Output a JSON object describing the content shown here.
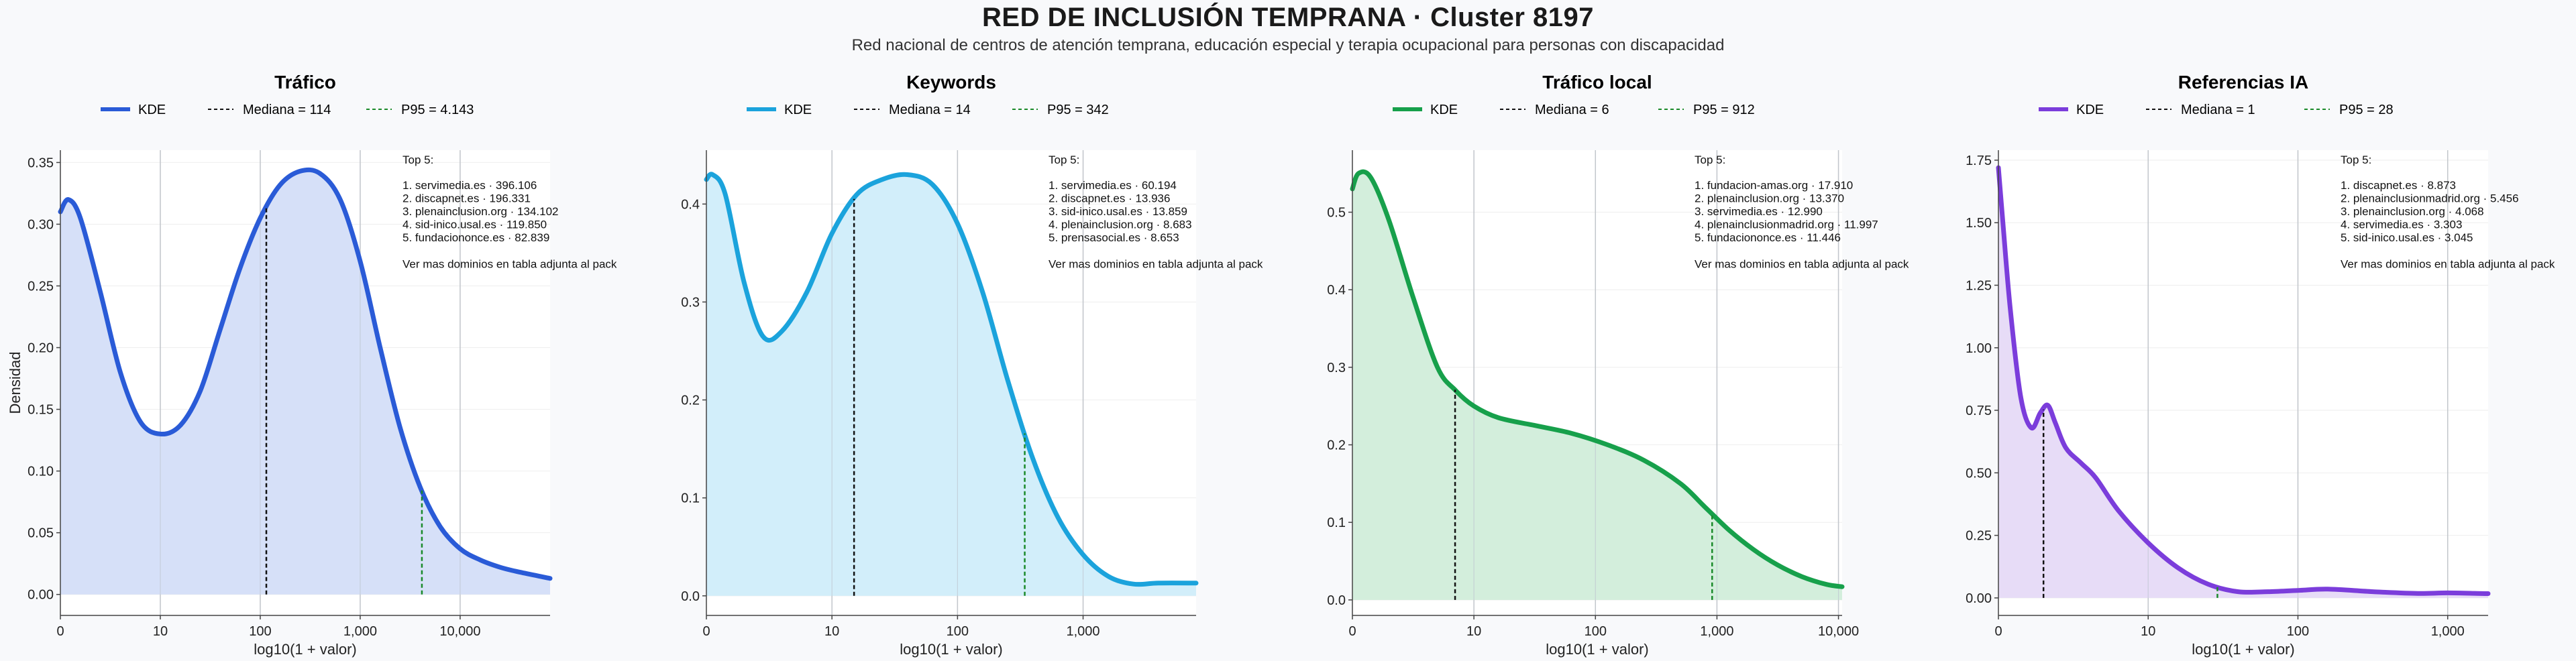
{
  "title": "RED DE INCLUSIÓN TEMPRANA · Cluster 8197",
  "subtitle": "Red nacional de centros de atención temprana, educación especial y terapia ocupacional para personas con discapacidad",
  "chart_data": [
    {
      "type": "area",
      "title": "Tráfico",
      "color": "#2a5bd7",
      "fill": "#d6e0f8",
      "xlabel": "log10(1 + valor)",
      "ylabel": "Densidad",
      "x_scale": "log10(1+x)",
      "xlim_log": [
        0,
        4.9
      ],
      "xticks": [
        {
          "v": 0,
          "label": "0"
        },
        {
          "v": 1,
          "label": "10"
        },
        {
          "v": 2,
          "label": "100"
        },
        {
          "v": 3,
          "label": "1,000"
        },
        {
          "v": 4,
          "label": "10,000"
        }
      ],
      "ylim": [
        -0.017,
        0.36
      ],
      "yticks": [
        0,
        0.05,
        0.1,
        0.15,
        0.2,
        0.25,
        0.3,
        0.35
      ],
      "ytick_labels": [
        "0.00",
        "0.05",
        "0.10",
        "0.15",
        "0.20",
        "0.25",
        "0.30",
        "0.35"
      ],
      "series": [
        {
          "name": "KDE",
          "x": [
            0,
            0.08,
            0.2,
            0.4,
            0.6,
            0.8,
            1.0,
            1.2,
            1.4,
            1.6,
            1.8,
            2.0,
            2.2,
            2.4,
            2.6,
            2.8,
            3.0,
            3.2,
            3.4,
            3.6,
            3.8,
            4.0,
            4.2,
            4.4,
            4.6,
            4.9
          ],
          "y": [
            0.31,
            0.32,
            0.305,
            0.245,
            0.18,
            0.14,
            0.13,
            0.137,
            0.165,
            0.215,
            0.265,
            0.305,
            0.332,
            0.343,
            0.341,
            0.32,
            0.27,
            0.2,
            0.135,
            0.087,
            0.055,
            0.037,
            0.028,
            0.022,
            0.018,
            0.013
          ]
        }
      ],
      "median": {
        "label": "Mediana = 114",
        "x": 114
      },
      "p95": {
        "label": "P95 = 4.143",
        "x": 4143
      },
      "top5_header": "Top 5:",
      "top5": [
        "1. servimedia.es · 396.106",
        "2. discapnet.es · 196.331",
        "3. plenainclusion.org · 134.102",
        "4. sid-inico.usal.es · 119.850",
        "5. fundaciononce.es · 82.839"
      ],
      "note": "Ver mas dominios en tabla adjunta al pack"
    },
    {
      "type": "area",
      "title": "Keywords",
      "color": "#1ba3dc",
      "fill": "#d2eefa",
      "xlabel": "log10(1 + valor)",
      "ylabel": "",
      "x_scale": "log10(1+x)",
      "xlim_log": [
        0,
        3.9
      ],
      "xticks": [
        {
          "v": 0,
          "label": "0"
        },
        {
          "v": 1,
          "label": "10"
        },
        {
          "v": 2,
          "label": "100"
        },
        {
          "v": 3,
          "label": "1,000"
        }
      ],
      "ylim": [
        -0.02,
        0.455
      ],
      "yticks": [
        0,
        0.1,
        0.2,
        0.3,
        0.4
      ],
      "ytick_labels": [
        "0.0",
        "0.1",
        "0.2",
        "0.3",
        "0.4"
      ],
      "series": [
        {
          "name": "KDE",
          "x": [
            0,
            0.05,
            0.15,
            0.3,
            0.45,
            0.6,
            0.8,
            1.0,
            1.2,
            1.4,
            1.6,
            1.8,
            2.0,
            2.2,
            2.4,
            2.6,
            2.8,
            3.0,
            3.2,
            3.4,
            3.6,
            3.9
          ],
          "y": [
            0.425,
            0.43,
            0.41,
            0.32,
            0.265,
            0.27,
            0.31,
            0.37,
            0.41,
            0.425,
            0.43,
            0.42,
            0.38,
            0.31,
            0.22,
            0.14,
            0.08,
            0.042,
            0.02,
            0.012,
            0.013,
            0.013
          ]
        }
      ],
      "median": {
        "label": "Mediana = 14",
        "x": 14
      },
      "p95": {
        "label": "P95 = 342",
        "x": 342
      },
      "top5_header": "Top 5:",
      "top5": [
        "1. servimedia.es · 60.194",
        "2. discapnet.es · 13.936",
        "3. sid-inico.usal.es · 13.859",
        "4. plenainclusion.org · 8.683",
        "5. prensasocial.es · 8.653"
      ],
      "note": "Ver mas dominios en tabla adjunta al pack"
    },
    {
      "type": "area",
      "title": "Tráfico local",
      "color": "#17a04b",
      "fill": "#d3eedc",
      "xlabel": "log10(1 + valor)",
      "ylabel": "",
      "x_scale": "log10(1+x)",
      "xlim_log": [
        0,
        4.03
      ],
      "xticks": [
        {
          "v": 0,
          "label": "0"
        },
        {
          "v": 1,
          "label": "10"
        },
        {
          "v": 2,
          "label": "100"
        },
        {
          "v": 3,
          "label": "1,000"
        },
        {
          "v": 4,
          "label": "10,000"
        }
      ],
      "ylim": [
        -0.02,
        0.58
      ],
      "yticks": [
        0,
        0.1,
        0.2,
        0.3,
        0.4,
        0.5
      ],
      "ytick_labels": [
        "0.0",
        "0.1",
        "0.2",
        "0.3",
        "0.4",
        "0.5"
      ],
      "series": [
        {
          "name": "KDE",
          "x": [
            0,
            0.05,
            0.15,
            0.3,
            0.5,
            0.7,
            0.85,
            1.0,
            1.2,
            1.5,
            1.8,
            2.1,
            2.4,
            2.7,
            2.9,
            3.1,
            3.3,
            3.5,
            3.7,
            3.9,
            4.03
          ],
          "y": [
            0.53,
            0.55,
            0.545,
            0.49,
            0.39,
            0.3,
            0.27,
            0.25,
            0.235,
            0.225,
            0.215,
            0.2,
            0.18,
            0.15,
            0.12,
            0.09,
            0.065,
            0.045,
            0.03,
            0.02,
            0.017
          ]
        }
      ],
      "median": {
        "label": "Mediana = 6",
        "x": 6
      },
      "p95": {
        "label": "P95 = 912",
        "x": 912
      },
      "top5_header": "Top 5:",
      "top5": [
        "1. fundacion-amas.org · 17.910",
        "2. plenainclusion.org · 13.370",
        "3. servimedia.es · 12.990",
        "4. plenainclusionmadrid.org · 11.997",
        "5. fundaciononce.es · 11.446"
      ],
      "note": "Ver mas dominios en tabla adjunta al pack"
    },
    {
      "type": "area",
      "title": "Referencias IA",
      "color": "#7b3ddb",
      "fill": "#e7dcf7",
      "xlabel": "log10(1 + valor)",
      "ylabel": "",
      "x_scale": "log10(1+x)",
      "xlim_log": [
        0,
        3.27
      ],
      "xticks": [
        {
          "v": 0,
          "label": "0"
        },
        {
          "v": 1,
          "label": "10"
        },
        {
          "v": 2,
          "label": "100"
        },
        {
          "v": 3,
          "label": "1,000"
        }
      ],
      "ylim": [
        -0.07,
        1.79
      ],
      "yticks": [
        0,
        0.25,
        0.5,
        0.75,
        1.0,
        1.25,
        1.5,
        1.75
      ],
      "ytick_labels": [
        "0.00",
        "0.25",
        "0.50",
        "0.75",
        "1.00",
        "1.25",
        "1.50",
        "1.75"
      ],
      "series": [
        {
          "name": "KDE",
          "x": [
            0,
            0.03,
            0.08,
            0.15,
            0.22,
            0.28,
            0.33,
            0.38,
            0.45,
            0.55,
            0.65,
            0.8,
            1.0,
            1.2,
            1.4,
            1.6,
            1.8,
            2.0,
            2.2,
            2.5,
            2.8,
            3.0,
            3.27
          ],
          "y": [
            1.72,
            1.5,
            1.15,
            0.8,
            0.68,
            0.74,
            0.77,
            0.7,
            0.6,
            0.54,
            0.48,
            0.35,
            0.22,
            0.12,
            0.055,
            0.025,
            0.025,
            0.03,
            0.035,
            0.025,
            0.018,
            0.02,
            0.017
          ]
        }
      ],
      "median": {
        "label": "Mediana = 1",
        "x": 1
      },
      "p95": {
        "label": "P95 = 28",
        "x": 28
      },
      "top5_header": "Top 5:",
      "top5": [
        "1. discapnet.es · 8.873",
        "2. plenainclusionmadrid.org · 5.456",
        "3. plenainclusion.org · 4.068",
        "4. servimedia.es · 3.303",
        "5. sid-inico.usal.es · 3.045"
      ],
      "note": "Ver mas dominios en tabla adjunta al pack"
    }
  ],
  "legend": {
    "kde": "KDE"
  }
}
